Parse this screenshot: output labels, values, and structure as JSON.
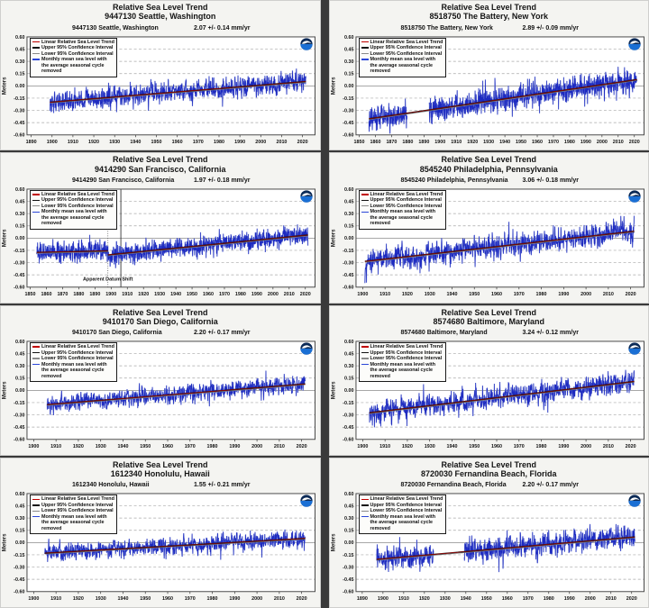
{
  "page": {
    "background": "#3a3a3a",
    "card_background": "#f4f4f1"
  },
  "ylabel": "Meters",
  "yticks": [
    0.6,
    0.45,
    0.3,
    0.15,
    0.0,
    -0.15,
    -0.3,
    -0.45,
    -0.6
  ],
  "legend": {
    "items": [
      {
        "label": "Linear Relative Sea Level Trend",
        "color": "#c00000"
      },
      {
        "label": "Upper 95% Confidence Interval",
        "color": "#141414"
      },
      {
        "label": "Lower 95% Confidence Interval",
        "color": "#8a8a8a"
      },
      {
        "label": "Monthly mean sea level with the average seasonal cycle removed",
        "color": "#2a46d8"
      }
    ]
  },
  "colors": {
    "data_line": "#1d2ac0",
    "data_underlay": "#9aa8e2",
    "trend_red": "#c00000",
    "trend_black": "#141414",
    "trend_gray": "#8a8a8a",
    "grid": "#a8a8a8",
    "zero_line": "#8c8c8c",
    "plot_border": "#4a4a4a",
    "noaa_navy": "#0b2a56",
    "noaa_blue": "#1a6fd4"
  },
  "chart_data": [
    {
      "type": "line",
      "title_line1": "Relative Sea Level Trend",
      "title_line2": "9447130 Seattle, Washington",
      "subtitle_station": "9447130 Seattle, Washington",
      "trend_label": "2.07 +/-  0.14 mm/yr",
      "trend_mm_per_yr": 2.07,
      "trend_ci_mm_per_yr": 0.14,
      "ylim": [
        -0.6,
        0.6
      ],
      "xlim": [
        1888,
        2026
      ],
      "xticks": [
        1890,
        1900,
        1910,
        1920,
        1930,
        1940,
        1950,
        1960,
        1970,
        1980,
        1990,
        2000,
        2010,
        2020
      ],
      "data_start": 1899,
      "data_end": 2021.6,
      "trend_segments": [
        [
          1899,
          -0.2,
          2021.6,
          0.053
        ]
      ],
      "gaps": [],
      "noise_sd": 0.055,
      "seed": 71301
    },
    {
      "type": "line",
      "title_line1": "Relative Sea Level Trend",
      "title_line2": "8518750 The Battery, New York",
      "subtitle_station": "8518750 The Battery, New York",
      "trend_label": "2.89 +/-  0.09 mm/yr",
      "trend_mm_per_yr": 2.89,
      "trend_ci_mm_per_yr": 0.09,
      "ylim": [
        -0.6,
        0.6
      ],
      "xlim": [
        1848,
        2026
      ],
      "xticks": [
        1850,
        1860,
        1870,
        1880,
        1890,
        1900,
        1910,
        1920,
        1930,
        1940,
        1950,
        1960,
        1970,
        1980,
        1990,
        2000,
        2010,
        2020
      ],
      "data_start": 1856,
      "data_end": 2021.6,
      "trend_segments": [
        [
          1856,
          -0.402,
          2021.6,
          0.077
        ]
      ],
      "gaps": [
        [
          1879.5,
          1893.2
        ]
      ],
      "noise_sd": 0.062,
      "seed": 18750
    },
    {
      "type": "line",
      "title_line1": "Relative Sea Level Trend",
      "title_line2": "9414290 San Francisco, California",
      "subtitle_station": "9414290 San Francisco, California",
      "trend_label": "1.97 +/-  0.18 mm/yr",
      "trend_mm_per_yr": 1.97,
      "trend_ci_mm_per_yr": 0.18,
      "ylim": [
        -0.6,
        0.6
      ],
      "xlim": [
        1848,
        2026
      ],
      "xticks": [
        1850,
        1860,
        1870,
        1880,
        1890,
        1900,
        1910,
        1920,
        1930,
        1940,
        1950,
        1960,
        1970,
        1980,
        1990,
        2000,
        2010,
        2020
      ],
      "data_start": 1854,
      "data_end": 2021.6,
      "trend_segments": [
        [
          1854,
          -0.175,
          1898,
          -0.156
        ],
        [
          1898,
          -0.205,
          2021.6,
          0.038
        ]
      ],
      "gaps": [],
      "noise_sd": 0.05,
      "seed": 14290,
      "vline_dotted": 1898,
      "vline_solid": 1906,
      "annotation": {
        "label": "Apparent Datum Shift",
        "x": 1898,
        "y": -0.52
      }
    },
    {
      "type": "line",
      "title_line1": "Relative Sea Level Trend",
      "title_line2": "8545240 Philadelphia, Pennsylvania",
      "subtitle_station": "8545240 Philadelphia, Pennsylvania",
      "trend_label": "3.06 +/-  0.18 mm/yr",
      "trend_mm_per_yr": 3.06,
      "trend_ci_mm_per_yr": 0.18,
      "ylim": [
        -0.6,
        0.6
      ],
      "xlim": [
        1897,
        2026
      ],
      "xticks": [
        1900,
        1910,
        1920,
        1930,
        1940,
        1950,
        1960,
        1970,
        1980,
        1990,
        2000,
        2010,
        2020
      ],
      "data_start": 1901,
      "data_end": 2021.6,
      "trend_segments": [
        [
          1901,
          -0.285,
          2021.6,
          0.084
        ]
      ],
      "gaps": [],
      "noise_sd": 0.063,
      "seed": 45240,
      "start_spike": true
    },
    {
      "type": "line",
      "title_line1": "Relative Sea Level Trend",
      "title_line2": "9410170 San Diego, California",
      "subtitle_station": "9410170 San Diego, California",
      "trend_label": "2.20 +/-  0.17 mm/yr",
      "trend_mm_per_yr": 2.2,
      "trend_ci_mm_per_yr": 0.17,
      "ylim": [
        -0.6,
        0.6
      ],
      "xlim": [
        1897,
        2026
      ],
      "xticks": [
        1900,
        1910,
        1920,
        1930,
        1940,
        1950,
        1960,
        1970,
        1980,
        1990,
        2000,
        2010,
        2020
      ],
      "data_start": 1906,
      "data_end": 2021.6,
      "trend_segments": [
        [
          1906,
          -0.175,
          2021.6,
          0.079
        ]
      ],
      "gaps": [],
      "noise_sd": 0.048,
      "seed": 10170
    },
    {
      "type": "line",
      "title_line1": "Relative Sea Level Trend",
      "title_line2": "8574680 Baltimore, Maryland",
      "subtitle_station": "8574680 Baltimore, Maryland",
      "trend_label": "3.24 +/-  0.12 mm/yr",
      "trend_mm_per_yr": 3.24,
      "trend_ci_mm_per_yr": 0.12,
      "ylim": [
        -0.6,
        0.6
      ],
      "xlim": [
        1897,
        2026
      ],
      "xticks": [
        1900,
        1910,
        1920,
        1930,
        1940,
        1950,
        1960,
        1970,
        1980,
        1990,
        2000,
        2010,
        2020
      ],
      "data_start": 1903,
      "data_end": 2021.6,
      "trend_segments": [
        [
          1903,
          -0.275,
          2021.6,
          0.109
        ]
      ],
      "gaps": [],
      "noise_sd": 0.058,
      "seed": 74680
    },
    {
      "type": "line",
      "title_line1": "Relative Sea Level Trend",
      "title_line2": "1612340 Honolulu, Hawaii",
      "subtitle_station": "1612340 Honolulu, Hawaii",
      "trend_label": "1.55 +/-  0.21 mm/yr",
      "trend_mm_per_yr": 1.55,
      "trend_ci_mm_per_yr": 0.21,
      "ylim": [
        -0.6,
        0.6
      ],
      "xlim": [
        1897,
        2026
      ],
      "xticks": [
        1900,
        1910,
        1920,
        1930,
        1940,
        1950,
        1960,
        1970,
        1980,
        1990,
        2000,
        2010,
        2020
      ],
      "data_start": 1905,
      "data_end": 2021.6,
      "trend_segments": [
        [
          1905,
          -0.13,
          2021.6,
          0.051
        ]
      ],
      "gaps": [],
      "noise_sd": 0.047,
      "seed": 12340
    },
    {
      "type": "line",
      "title_line1": "Relative Sea Level Trend",
      "title_line2": "8720030 Fernandina Beach, Florida",
      "subtitle_station": "8720030 Fernandina Beach, Florida",
      "trend_label": "2.20 +/-  0.17 mm/yr",
      "trend_mm_per_yr": 2.2,
      "trend_ci_mm_per_yr": 0.17,
      "ylim": [
        -0.6,
        0.6
      ],
      "xlim": [
        1887,
        2026
      ],
      "xticks": [
        1890,
        1900,
        1910,
        1920,
        1930,
        1940,
        1950,
        1960,
        1970,
        1980,
        1990,
        2000,
        2010,
        2020
      ],
      "data_start": 1897,
      "data_end": 2021.6,
      "trend_segments": [
        [
          1897,
          -0.205,
          2021.6,
          0.069
        ]
      ],
      "gaps": [
        [
          1924.5,
          1939.2
        ]
      ],
      "noise_sd": 0.062,
      "seed": 20030
    }
  ]
}
